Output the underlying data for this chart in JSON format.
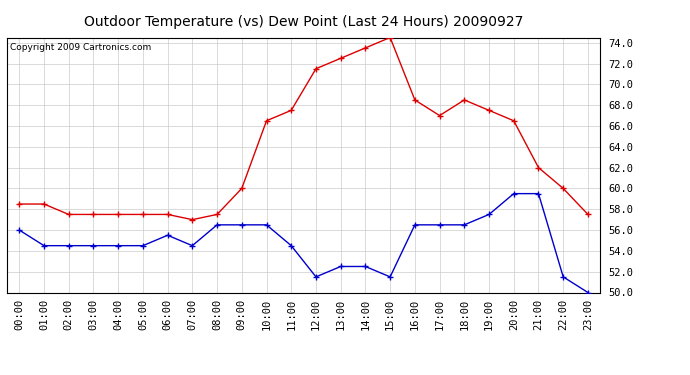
{
  "title": "Outdoor Temperature (vs) Dew Point (Last 24 Hours) 20090927",
  "copyright": "Copyright 2009 Cartronics.com",
  "x_labels": [
    "00:00",
    "01:00",
    "02:00",
    "03:00",
    "04:00",
    "05:00",
    "06:00",
    "07:00",
    "08:00",
    "09:00",
    "10:00",
    "11:00",
    "12:00",
    "13:00",
    "14:00",
    "15:00",
    "16:00",
    "17:00",
    "18:00",
    "19:00",
    "20:00",
    "21:00",
    "22:00",
    "23:00"
  ],
  "temp_red": [
    58.5,
    58.5,
    57.5,
    57.5,
    57.5,
    57.5,
    57.5,
    57.0,
    57.5,
    60.0,
    66.5,
    67.5,
    71.5,
    72.5,
    73.5,
    74.5,
    68.5,
    67.0,
    68.5,
    67.5,
    66.5,
    62.0,
    60.0,
    57.5
  ],
  "dew_blue": [
    56.0,
    54.5,
    54.5,
    54.5,
    54.5,
    54.5,
    55.5,
    54.5,
    56.5,
    56.5,
    56.5,
    54.5,
    51.5,
    52.5,
    52.5,
    51.5,
    56.5,
    56.5,
    56.5,
    57.5,
    59.5,
    59.5,
    51.5,
    50.0
  ],
  "ylim": [
    50.0,
    74.5
  ],
  "yticks": [
    50.0,
    52.0,
    54.0,
    56.0,
    58.0,
    60.0,
    62.0,
    64.0,
    66.0,
    68.0,
    70.0,
    72.0,
    74.0
  ],
  "bg_color": "#ffffff",
  "plot_bg_color": "#ffffff",
  "grid_color": "#cccccc",
  "red_color": "#dd0000",
  "blue_color": "#0000cc",
  "title_fontsize": 10,
  "copyright_fontsize": 6.5,
  "tick_fontsize": 7.5
}
